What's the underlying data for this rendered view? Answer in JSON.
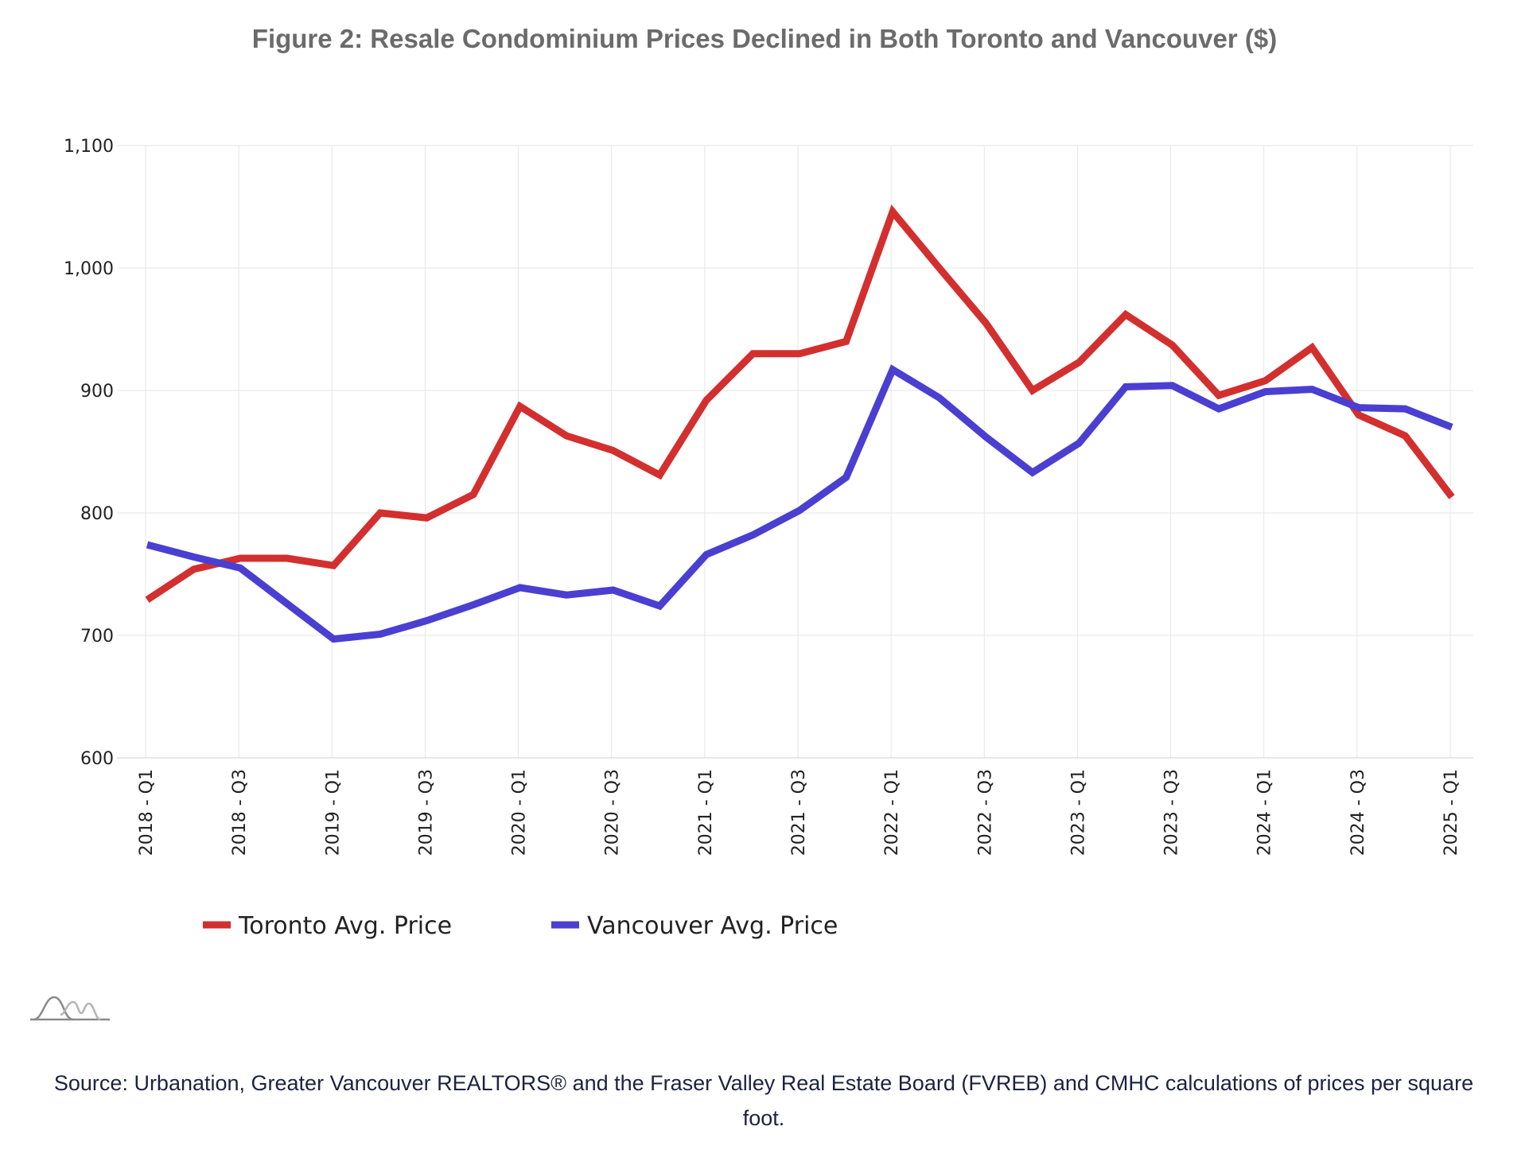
{
  "colors": {
    "toronto": "#d32f2f",
    "vancouver": "#4a3fd1",
    "grid": "#e6e6e6",
    "title": "#6b6b6b"
  },
  "chart_data": {
    "type": "line",
    "title": "Figure 2: Resale Condominium Prices Declined in Both Toronto and Vancouver ($)",
    "xlabel": "",
    "ylabel": "",
    "ylim": [
      600,
      1100
    ],
    "yticks": [
      "600",
      "700",
      "800",
      "900",
      "1,000",
      "1,100"
    ],
    "ytick_values": [
      600,
      700,
      800,
      900,
      1000,
      1100
    ],
    "grid": true,
    "legend_position": "bottom-left",
    "x": [
      "2018 - Q1",
      "2018 - Q2",
      "2018 - Q3",
      "2018 - Q4",
      "2019 - Q1",
      "2019 - Q2",
      "2019 - Q3",
      "2019 - Q4",
      "2020 - Q1",
      "2020 - Q2",
      "2020 - Q3",
      "2020 - Q4",
      "2021 - Q1",
      "2021 - Q2",
      "2021 - Q3",
      "2021 - Q4",
      "2022 - Q1",
      "2022 - Q2",
      "2022 - Q3",
      "2022 - Q4",
      "2023 - Q1",
      "2023 - Q2",
      "2023 - Q3",
      "2023 - Q4",
      "2024 - Q1",
      "2024 - Q2",
      "2024 - Q3",
      "2024 - Q4",
      "2025 - Q1"
    ],
    "xtick_labels": [
      "2018 - Q1",
      "2018 - Q3",
      "2019 - Q1",
      "2019 - Q3",
      "2020 - Q1",
      "2020 - Q3",
      "2021 - Q1",
      "2021 - Q3",
      "2022 - Q1",
      "2022 - Q3",
      "2023 - Q1",
      "2023 - Q3",
      "2024 - Q1",
      "2024 - Q3",
      "2025 - Q1"
    ],
    "series": [
      {
        "name": "Toronto Avg. Price",
        "values": [
          729,
          754,
          763,
          763,
          757,
          800,
          796,
          815,
          887,
          863,
          851,
          831,
          892,
          930,
          930,
          940,
          1046,
          1000,
          955,
          900,
          923,
          962,
          937,
          896,
          908,
          935,
          880,
          863,
          813
        ]
      },
      {
        "name": "Vancouver Avg. Price",
        "values": [
          774,
          764,
          755,
          726,
          697,
          701,
          712,
          725,
          739,
          733,
          737,
          724,
          766,
          782,
          802,
          829,
          917,
          894,
          862,
          833,
          857,
          903,
          904,
          885,
          899,
          901,
          886,
          885,
          870
        ]
      }
    ]
  },
  "source": "Source: Urbanation, Greater Vancouver REALTORS® and the Fraser Valley Real Estate Board (FVREB) and CMHC calculations of prices per square foot."
}
